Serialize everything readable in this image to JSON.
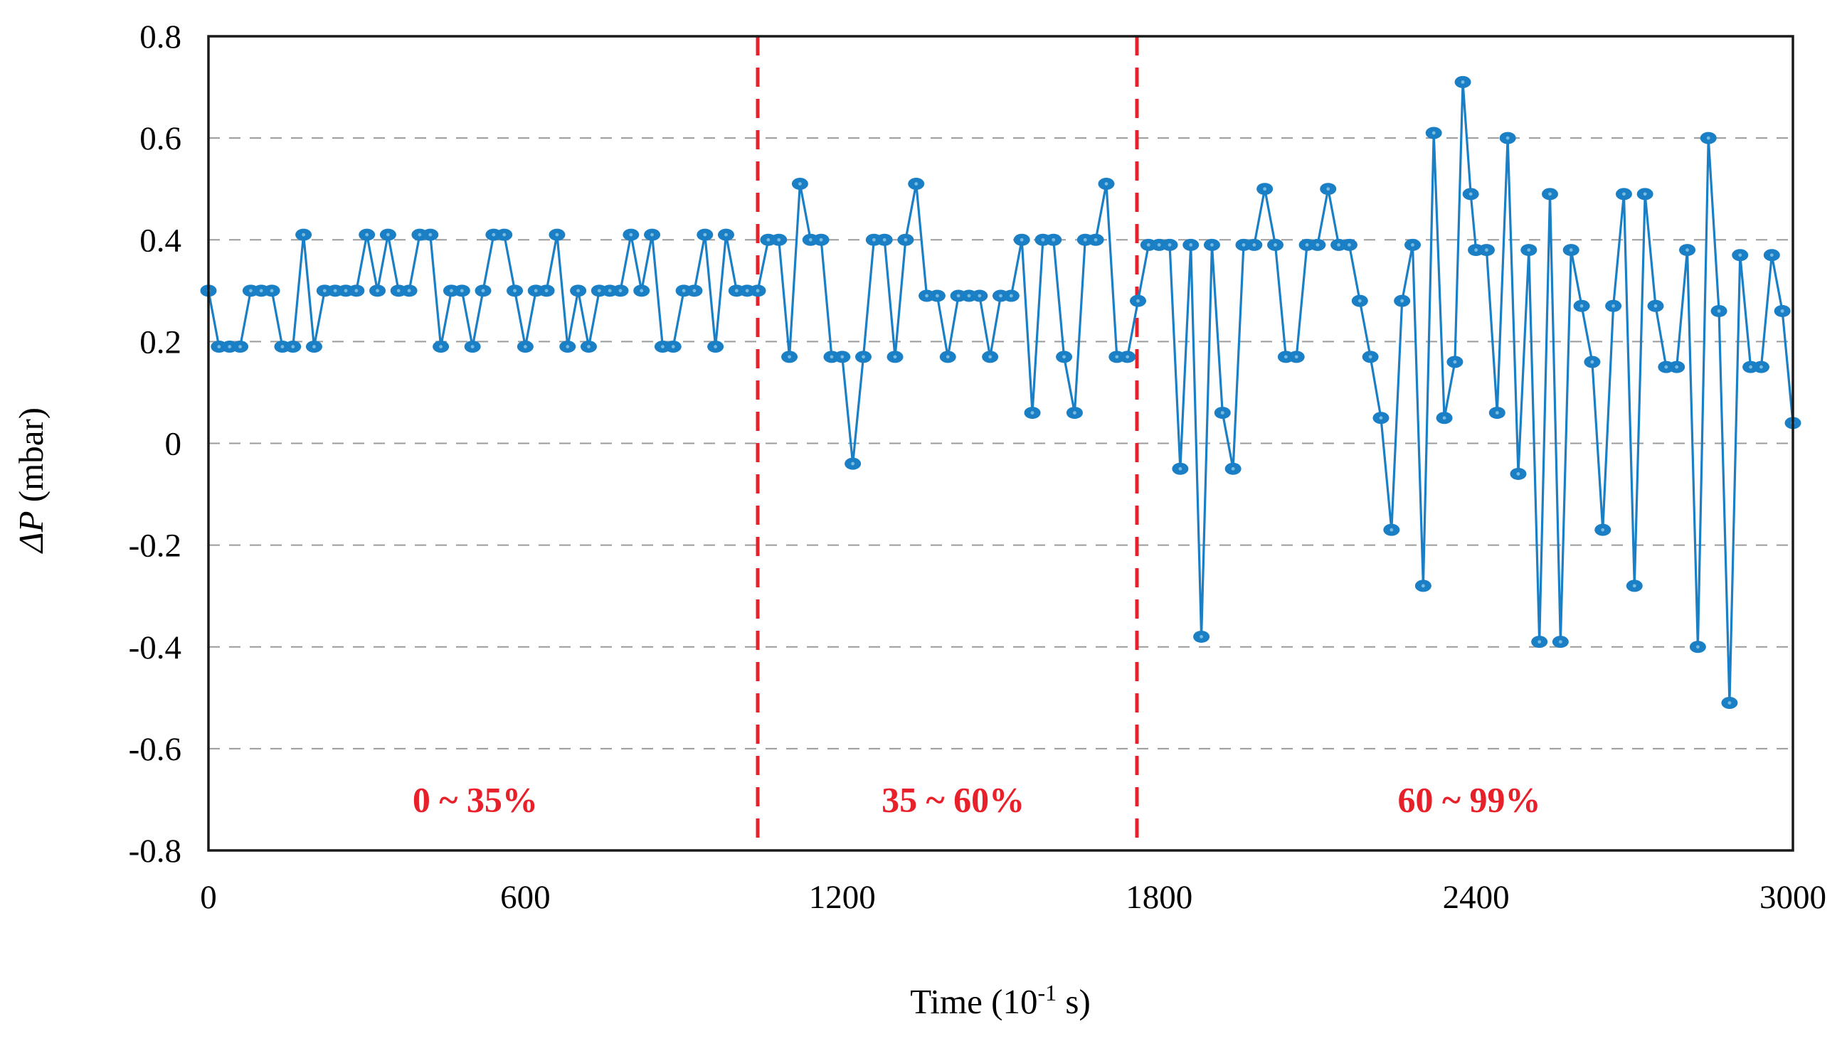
{
  "chart_data": {
    "type": "line",
    "title": "",
    "xlabel": {
      "pre": "Time (10",
      "sup": "-1",
      "post": " s)"
    },
    "ylabel": {
      "italic": "ΔP",
      "rest": " (mbar)"
    },
    "xlim": [
      0,
      3000
    ],
    "ylim": [
      -0.8,
      0.8
    ],
    "x_ticks": [
      "0",
      "600",
      "1200",
      "1800",
      "2400",
      "3000"
    ],
    "x_tick_values": [
      0,
      600,
      1200,
      1800,
      2400,
      3000
    ],
    "y_ticks": [
      "0.8",
      "0.6",
      "0.4",
      "0.2",
      "0",
      "-0.2",
      "-0.4",
      "-0.6",
      "-0.8"
    ],
    "y_tick_values": [
      0.8,
      0.6,
      0.4,
      0.2,
      0,
      -0.2,
      -0.4,
      -0.6,
      -0.8
    ],
    "grid": "horizontal-dashed",
    "gridline_values": [
      0.6,
      0.4,
      0.2,
      0,
      -0.2,
      -0.4,
      -0.6
    ],
    "legend": "none",
    "dividers": [
      {
        "name": "region-divider-1",
        "x": 1040
      },
      {
        "name": "region-divider-2",
        "x": 1758
      }
    ],
    "region_labels": [
      {
        "text": "0 ~ 35%",
        "x": 505,
        "y": -0.7
      },
      {
        "text": "35 ~ 60%",
        "x": 1410,
        "y": -0.7
      },
      {
        "text": "60 ~ 99%",
        "x": 2387,
        "y": -0.7
      }
    ],
    "series": [
      {
        "name": "delta-P",
        "points": [
          [
            0,
            0.3
          ],
          [
            20,
            0.19
          ],
          [
            40,
            0.19
          ],
          [
            60,
            0.19
          ],
          [
            80,
            0.3
          ],
          [
            100,
            0.3
          ],
          [
            120,
            0.3
          ],
          [
            140,
            0.19
          ],
          [
            160,
            0.19
          ],
          [
            180,
            0.41
          ],
          [
            200,
            0.19
          ],
          [
            220,
            0.3
          ],
          [
            240,
            0.3
          ],
          [
            260,
            0.3
          ],
          [
            280,
            0.3
          ],
          [
            300,
            0.41
          ],
          [
            320,
            0.3
          ],
          [
            340,
            0.41
          ],
          [
            360,
            0.3
          ],
          [
            380,
            0.3
          ],
          [
            400,
            0.41
          ],
          [
            420,
            0.41
          ],
          [
            440,
            0.19
          ],
          [
            460,
            0.3
          ],
          [
            480,
            0.3
          ],
          [
            500,
            0.19
          ],
          [
            520,
            0.3
          ],
          [
            540,
            0.41
          ],
          [
            560,
            0.41
          ],
          [
            580,
            0.3
          ],
          [
            600,
            0.19
          ],
          [
            620,
            0.3
          ],
          [
            640,
            0.3
          ],
          [
            660,
            0.41
          ],
          [
            680,
            0.19
          ],
          [
            700,
            0.3
          ],
          [
            720,
            0.19
          ],
          [
            740,
            0.3
          ],
          [
            760,
            0.3
          ],
          [
            780,
            0.3
          ],
          [
            800,
            0.41
          ],
          [
            820,
            0.3
          ],
          [
            840,
            0.41
          ],
          [
            860,
            0.19
          ],
          [
            880,
            0.19
          ],
          [
            900,
            0.3
          ],
          [
            920,
            0.3
          ],
          [
            940,
            0.41
          ],
          [
            960,
            0.19
          ],
          [
            980,
            0.41
          ],
          [
            1000,
            0.3
          ],
          [
            1020,
            0.3
          ],
          [
            1040,
            0.3
          ],
          [
            1060,
            0.4
          ],
          [
            1080,
            0.4
          ],
          [
            1100,
            0.17
          ],
          [
            1120,
            0.51
          ],
          [
            1140,
            0.4
          ],
          [
            1160,
            0.4
          ],
          [
            1180,
            0.17
          ],
          [
            1200,
            0.17
          ],
          [
            1220,
            -0.04
          ],
          [
            1240,
            0.17
          ],
          [
            1260,
            0.4
          ],
          [
            1280,
            0.4
          ],
          [
            1300,
            0.17
          ],
          [
            1320,
            0.4
          ],
          [
            1340,
            0.51
          ],
          [
            1360,
            0.29
          ],
          [
            1380,
            0.29
          ],
          [
            1400,
            0.17
          ],
          [
            1420,
            0.29
          ],
          [
            1440,
            0.29
          ],
          [
            1460,
            0.29
          ],
          [
            1480,
            0.17
          ],
          [
            1500,
            0.29
          ],
          [
            1520,
            0.29
          ],
          [
            1540,
            0.4
          ],
          [
            1560,
            0.06
          ],
          [
            1580,
            0.4
          ],
          [
            1600,
            0.4
          ],
          [
            1620,
            0.17
          ],
          [
            1640,
            0.06
          ],
          [
            1660,
            0.4
          ],
          [
            1680,
            0.4
          ],
          [
            1700,
            0.51
          ],
          [
            1720,
            0.17
          ],
          [
            1740,
            0.17
          ],
          [
            1760,
            0.28
          ],
          [
            1780,
            0.39
          ],
          [
            1800,
            0.39
          ],
          [
            1820,
            0.39
          ],
          [
            1840,
            -0.05
          ],
          [
            1860,
            0.39
          ],
          [
            1880,
            -0.38
          ],
          [
            1900,
            0.39
          ],
          [
            1920,
            0.06
          ],
          [
            1940,
            -0.05
          ],
          [
            1960,
            0.39
          ],
          [
            1980,
            0.39
          ],
          [
            2000,
            0.5
          ],
          [
            2020,
            0.39
          ],
          [
            2040,
            0.17
          ],
          [
            2060,
            0.17
          ],
          [
            2080,
            0.39
          ],
          [
            2100,
            0.39
          ],
          [
            2120,
            0.5
          ],
          [
            2140,
            0.39
          ],
          [
            2160,
            0.39
          ],
          [
            2180,
            0.28
          ],
          [
            2200,
            0.17
          ],
          [
            2220,
            0.05
          ],
          [
            2240,
            -0.17
          ],
          [
            2260,
            0.28
          ],
          [
            2280,
            0.39
          ],
          [
            2300,
            -0.28
          ],
          [
            2320,
            0.61
          ],
          [
            2340,
            0.05
          ],
          [
            2360,
            0.16
          ],
          [
            2375,
            0.71
          ],
          [
            2390,
            0.49
          ],
          [
            2400,
            0.38
          ],
          [
            2420,
            0.38
          ],
          [
            2440,
            0.06
          ],
          [
            2460,
            0.6
          ],
          [
            2480,
            -0.06
          ],
          [
            2500,
            0.38
          ],
          [
            2520,
            -0.39
          ],
          [
            2540,
            0.49
          ],
          [
            2560,
            -0.39
          ],
          [
            2580,
            0.38
          ],
          [
            2600,
            0.27
          ],
          [
            2620,
            0.16
          ],
          [
            2640,
            -0.17
          ],
          [
            2660,
            0.27
          ],
          [
            2680,
            0.49
          ],
          [
            2700,
            -0.28
          ],
          [
            2720,
            0.49
          ],
          [
            2740,
            0.27
          ],
          [
            2760,
            0.15
          ],
          [
            2780,
            0.15
          ],
          [
            2800,
            0.38
          ],
          [
            2820,
            -0.4
          ],
          [
            2840,
            0.6
          ],
          [
            2860,
            0.26
          ],
          [
            2880,
            -0.51
          ],
          [
            2900,
            0.37
          ],
          [
            2920,
            0.15
          ],
          [
            2940,
            0.15
          ],
          [
            2960,
            0.37
          ],
          [
            2980,
            0.26
          ],
          [
            3000,
            0.04
          ]
        ]
      }
    ]
  },
  "colors": {
    "series_blue": "#1a7fc4",
    "marker_core": "#8ecbe8",
    "divider_red": "#e8202a",
    "region_label_red": "#e8202a",
    "gridline_gray": "#9b9b9b",
    "axis_black": "#1a1a1a",
    "background": "#ffffff"
  },
  "layout_note": "single x-y plot, frame box, no legend, horizontal dashed gridlines only"
}
